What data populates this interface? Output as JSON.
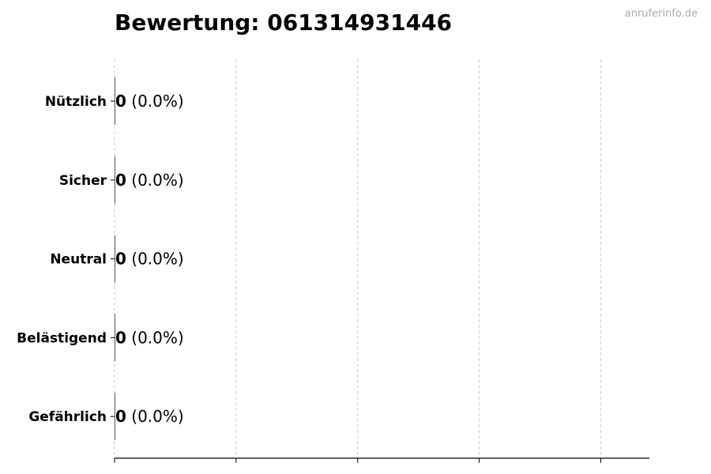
{
  "chart_data": {
    "type": "bar",
    "orientation": "horizontal",
    "title": "Bewertung: 061314931446",
    "categories": [
      "Nützlich",
      "Sicher",
      "Neutral",
      "Belästigend",
      "Gefährlich"
    ],
    "values": [
      0,
      0,
      0,
      0,
      0
    ],
    "value_labels": [
      "0",
      "0",
      "0",
      "0",
      "0"
    ],
    "percent_labels": [
      "(0.0%)",
      "(0.0%)",
      "(0.0%)",
      "(0.0%)",
      "(0.0%)"
    ],
    "xlim": [
      0,
      4.4
    ],
    "xticks": [
      0,
      1,
      2,
      3,
      4
    ],
    "xtick_labels_shown": false,
    "grid": "x-dashed",
    "xlabel": "",
    "ylabel": ""
  },
  "watermark": "anruferinfo.de"
}
